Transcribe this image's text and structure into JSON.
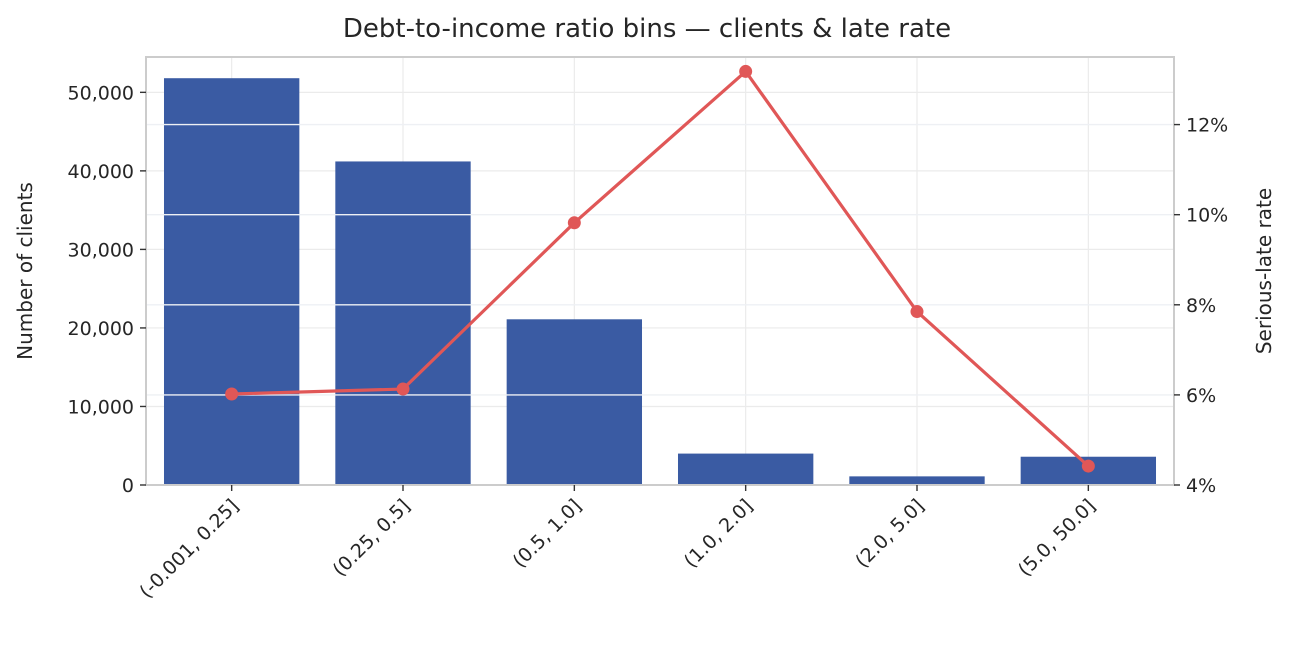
{
  "chart_data": {
    "type": "bar",
    "title": "Debt-to-income ratio bins — clients & late rate",
    "categories": [
      "(-0.001, 0.25]",
      "(0.25, 0.5]",
      "(0.5, 1.0]",
      "(1.0, 2.0]",
      "(2.0, 5.0]",
      "(5.0, 50.0]"
    ],
    "series": [
      {
        "values": [
          51800,
          41200,
          21100,
          4000,
          1100,
          3600
        ],
        "axis": "left",
        "kind": "bar",
        "color": "#3a5ba3"
      },
      {
        "values": [
          0.0602,
          0.0613,
          0.0982,
          0.1318,
          0.0785,
          0.0442
        ],
        "axis": "right",
        "kind": "line",
        "color": "#e05757"
      }
    ],
    "xlabel": "",
    "ylabel": "Number of clients",
    "ylabel_right": "Serious-late rate",
    "ylim": [
      0,
      54500
    ],
    "ylim_right": [
      0.04,
      0.135
    ],
    "yticks": [
      0,
      10000,
      20000,
      30000,
      40000,
      50000
    ],
    "yticks_labels": [
      "0",
      "10,000",
      "20,000",
      "30,000",
      "40,000",
      "50,000"
    ],
    "yticks_right": [
      0.04,
      0.06,
      0.08,
      0.1,
      0.12
    ],
    "yticks_right_labels": [
      "4%",
      "6%",
      "8%",
      "10%",
      "12%"
    ],
    "grid": true
  }
}
